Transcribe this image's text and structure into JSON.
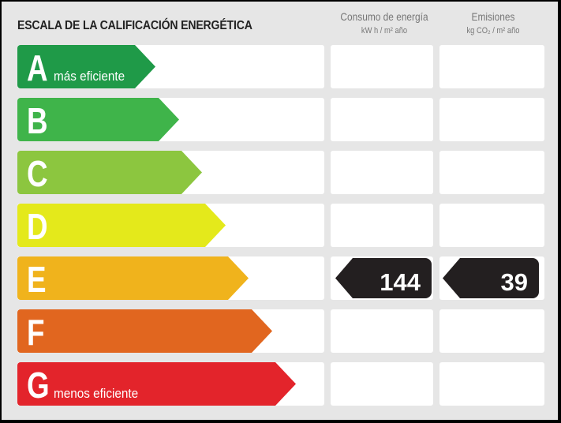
{
  "title": "ESCALA DE LA CALIFICACIÓN ENERGÉTICA",
  "columns": [
    {
      "label": "Consumo de energía",
      "unit": "kW h / m² año"
    },
    {
      "label": "Emisiones",
      "unit": "kg CO₂ / m² año"
    }
  ],
  "rating_scale": [
    {
      "letter": "A",
      "caption": "más eficiente",
      "color": "#1f9a48"
    },
    {
      "letter": "B",
      "caption": "",
      "color": "#3fb44a"
    },
    {
      "letter": "C",
      "caption": "",
      "color": "#8cc63f"
    },
    {
      "letter": "D",
      "caption": "",
      "color": "#e4e91b"
    },
    {
      "letter": "E",
      "caption": "",
      "color": "#f0b31c"
    },
    {
      "letter": "F",
      "caption": "",
      "color": "#e1661f"
    },
    {
      "letter": "G",
      "caption": "menos eficiente",
      "color": "#e3242b"
    }
  ],
  "current_rating": "E",
  "energy_consumption": "144",
  "emissions": "39",
  "badge_color": "#231f20"
}
